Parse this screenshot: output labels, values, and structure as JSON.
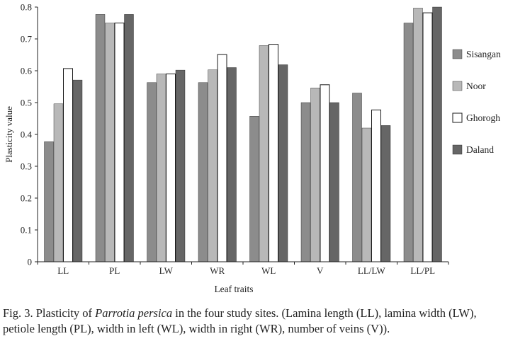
{
  "chart_data": {
    "type": "bar",
    "categories": [
      "LL",
      "PL",
      "LW",
      "WR",
      "WL",
      "V",
      "LL/LW",
      "LL/PL"
    ],
    "series": [
      {
        "name": "Sisangan",
        "color": "#8c8c8c",
        "values": [
          0.377,
          0.777,
          0.563,
          0.563,
          0.457,
          0.5,
          0.53,
          0.75
        ]
      },
      {
        "name": "Noor",
        "color": "#b8b8b8",
        "values": [
          0.496,
          0.75,
          0.59,
          0.603,
          0.679,
          0.546,
          0.42,
          0.797
        ]
      },
      {
        "name": "Ghorogh",
        "color": "#ffffff",
        "values": [
          0.607,
          0.75,
          0.59,
          0.651,
          0.683,
          0.556,
          0.477,
          0.782
        ]
      },
      {
        "name": "Daland",
        "color": "#666666",
        "values": [
          0.571,
          0.777,
          0.602,
          0.61,
          0.619,
          0.5,
          0.428,
          0.8
        ]
      }
    ],
    "xlabel": "Leaf traits",
    "ylabel": "Plasticity value",
    "ylim": [
      0,
      0.8
    ],
    "yticks": [
      "0",
      "0.1",
      "0.2",
      "0.3",
      "0.4",
      "0.5",
      "0.6",
      "0.7",
      "0.8"
    ],
    "legend_position": "right",
    "grid": false
  },
  "caption": {
    "prefix": "Fig. 3. Plasticity of ",
    "species": "Parrotia persica",
    "suffix": " in the four study sites. (Lamina length (LL), lamina width (LW), petiole length (PL), width in left (WL), width in right (WR), number of veins (V))."
  }
}
